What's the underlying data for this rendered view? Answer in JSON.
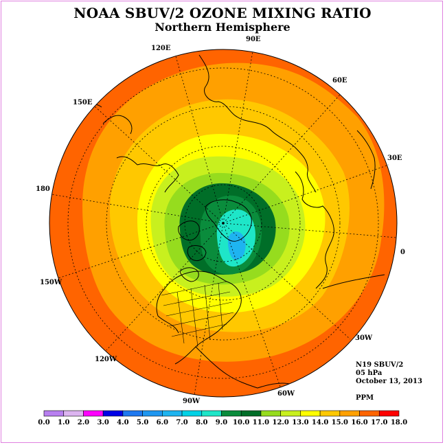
{
  "header": {
    "title": "NOAA SBUV/2 OZONE MIXING RATIO",
    "subtitle": "Northern Hemisphere"
  },
  "info": {
    "satellite": "N19 SBUV/2",
    "pressure": "05 hPa",
    "date": "October 13, 2013",
    "unit": "PPM"
  },
  "longitude_labels": [
    "0",
    "30E",
    "60E",
    "90E",
    "120E",
    "150E",
    "180",
    "150W",
    "120W",
    "90W",
    "60W",
    "30W"
  ],
  "colorbar": {
    "ticks": [
      "0.0",
      "1.0",
      "2.0",
      "3.0",
      "4.0",
      "5.0",
      "6.0",
      "7.0",
      "8.0",
      "9.0",
      "10.0",
      "11.0",
      "12.0",
      "13.0",
      "14.0",
      "15.0",
      "16.0",
      "17.0",
      "18.0"
    ],
    "colors": [
      "#b87ff0",
      "#dcb4f0",
      "#ff00ff",
      "#0000e6",
      "#1e78f0",
      "#1e96f0",
      "#1eb4f0",
      "#00d2e6",
      "#1ee6c8",
      "#0a8c3c",
      "#006e28",
      "#96dc1e",
      "#c8f01e",
      "#ffff00",
      "#ffc800",
      "#ffa000",
      "#ff6400",
      "#ff0000",
      "#8c5a3c"
    ]
  },
  "map_colors": {
    "ring_15_16": "#ff6400",
    "ring_14_15": "#ffa000",
    "ring_13_14": "#ffc800",
    "ring_12_13": "#ffff00",
    "ring_11_12": "#c8f01e",
    "ring_10_11": "#96dc1e",
    "ring_9_10": "#006e28",
    "ring_8_9": "#0a8c3c",
    "core_7_8": "#1ee6c8",
    "core_6_7": "#1eb4f0"
  }
}
